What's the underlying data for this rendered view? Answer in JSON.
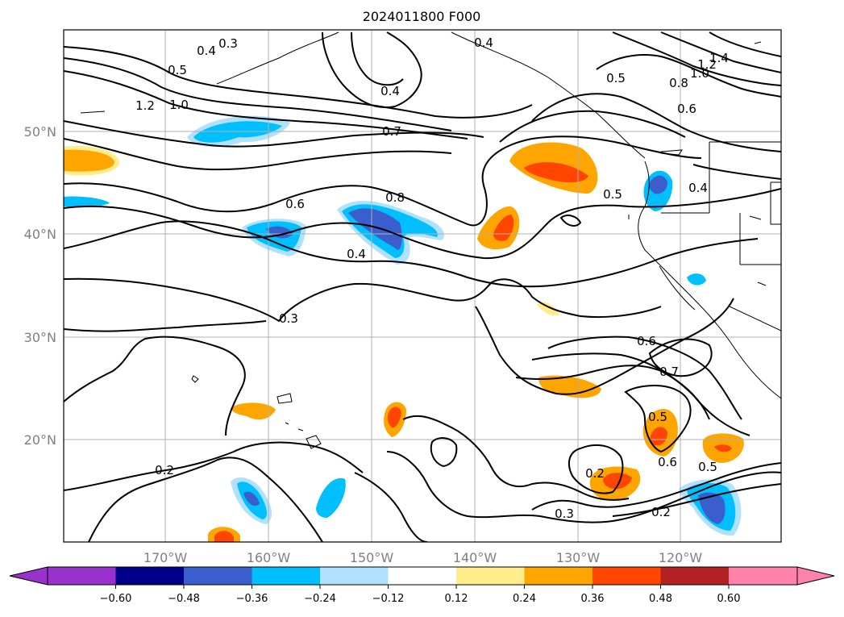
{
  "title": "2024011800 F000",
  "map": {
    "lon_labels": [
      "170°W",
      "160°W",
      "150°W",
      "140°W",
      "130°W",
      "120°W"
    ],
    "lat_labels": [
      "50°N",
      "40°N",
      "30°N",
      "20°N"
    ],
    "contour_labels": [
      "0.3",
      "0.4",
      "0.5",
      "1.2",
      "1.0",
      "0.7",
      "0.6",
      "0.8",
      "0.4",
      "0.3",
      "0.2",
      "0.4",
      "0.5",
      "1.4",
      "1.2",
      "1.0",
      "0.8",
      "0.6",
      "0.5",
      "0.4",
      "0.6",
      "0.7",
      "0.5",
      "0.6",
      "0.5",
      "0.2",
      "0.3",
      "0.2"
    ],
    "grid": true
  },
  "colorbar": {
    "tick_labels": [
      "−0.60",
      "−0.48",
      "−0.36",
      "−0.24",
      "−0.12",
      "0.12",
      "0.24",
      "0.36",
      "0.48",
      "0.60"
    ],
    "colors": [
      "#9932cc",
      "#00008b",
      "#3a5fcd",
      "#00bfff",
      "#b0e2ff",
      "#ffffff",
      "#ffec8b",
      "#ffa500",
      "#ff4500",
      "#b22222",
      "#ff82ab"
    ]
  }
}
